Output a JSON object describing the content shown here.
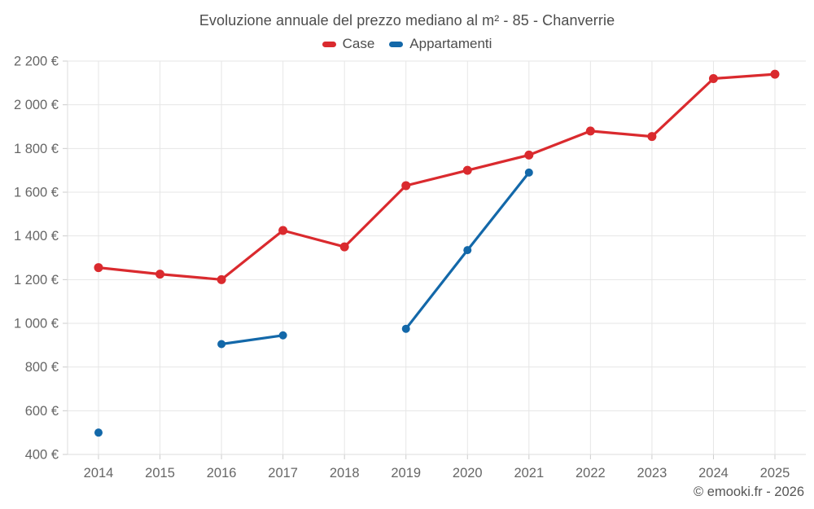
{
  "header": {
    "title": "Evoluzione annuale del prezzo mediano al m² - 85 - Chanverrie"
  },
  "legend": {
    "items": [
      {
        "label": "Case",
        "color": "#da2a2e"
      },
      {
        "label": "Appartamenti",
        "color": "#1368a9"
      }
    ]
  },
  "footer": {
    "text": "© emooki.fr - 2026"
  },
  "colors": {
    "grid": "#e6e6e6",
    "axis": "#dedede",
    "tick": "#cccccc",
    "tick_label": "#666666",
    "title_text": "#4d4d4d",
    "case_red": "#da2a2e",
    "appartamenti_blue": "#1368a9"
  },
  "chart_data": {
    "type": "line",
    "title": "Evoluzione annuale del prezzo mediano al m² - 85 - Chanverrie",
    "xlabel": "",
    "ylabel": "",
    "categories": [
      "2014",
      "2015",
      "2016",
      "2017",
      "2018",
      "2019",
      "2020",
      "2021",
      "2022",
      "2023",
      "2024",
      "2025"
    ],
    "series": [
      {
        "name": "Case",
        "color": "#da2a2e",
        "marker_radius": 5.5,
        "values": [
          1255,
          1225,
          1200,
          1425,
          1350,
          1630,
          1700,
          1770,
          1880,
          1855,
          2120,
          2140
        ]
      },
      {
        "name": "Appartamenti",
        "color": "#1368a9",
        "marker_radius": 5,
        "values": [
          500,
          null,
          905,
          945,
          null,
          975,
          1335,
          1690,
          null,
          null,
          null,
          null
        ]
      }
    ],
    "ylim": [
      400,
      2200
    ],
    "y_ticks": [
      400,
      600,
      800,
      1000,
      1200,
      1400,
      1600,
      1800,
      2000,
      2200
    ],
    "y_tick_labels": [
      "400 €",
      "600 €",
      "800 €",
      "1 000 €",
      "1 200 €",
      "1 400 €",
      "1 600 €",
      "1 800 €",
      "2 000 €",
      "2 200 €"
    ],
    "grid": true,
    "legend_position": "top",
    "currency": "€"
  }
}
